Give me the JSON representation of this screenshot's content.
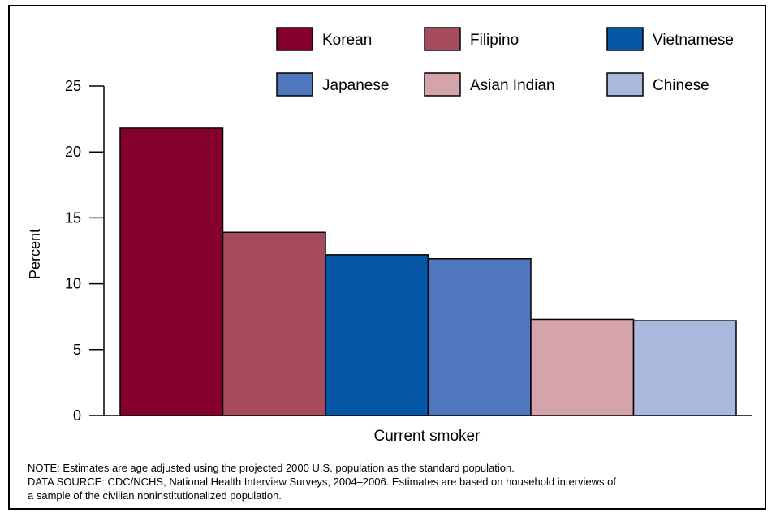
{
  "chart_data": {
    "type": "bar",
    "title": "",
    "xlabel": "Current smoker",
    "ylabel": "Percent",
    "ylim": [
      0,
      25
    ],
    "yticks": [
      0,
      5,
      10,
      15,
      20,
      25
    ],
    "grid": false,
    "legend_position": "top",
    "categories": [
      "Current smoker"
    ],
    "series": [
      {
        "name": "Korean",
        "values": [
          21.8
        ],
        "color": "#85002f"
      },
      {
        "name": "Filipino",
        "values": [
          13.9
        ],
        "color": "#a54b5c"
      },
      {
        "name": "Vietnamese",
        "values": [
          12.2
        ],
        "color": "#0557a5"
      },
      {
        "name": "Japanese",
        "values": [
          11.9
        ],
        "color": "#5077be"
      },
      {
        "name": "Asian Indian",
        "values": [
          7.3
        ],
        "color": "#d5a3aa"
      },
      {
        "name": "Chinese",
        "values": [
          7.2
        ],
        "color": "#abb8de"
      }
    ]
  },
  "notes": {
    "line1": "NOTE: Estimates are age adjusted using the projected 2000 U.S. population as the standard population.",
    "line2": "DATA SOURCE: CDC/NCHS, National Health Interview Surveys, 2004–2006. Estimates are based on household interviews of",
    "line3": "a sample of the civilian noninstitutionalized population."
  }
}
